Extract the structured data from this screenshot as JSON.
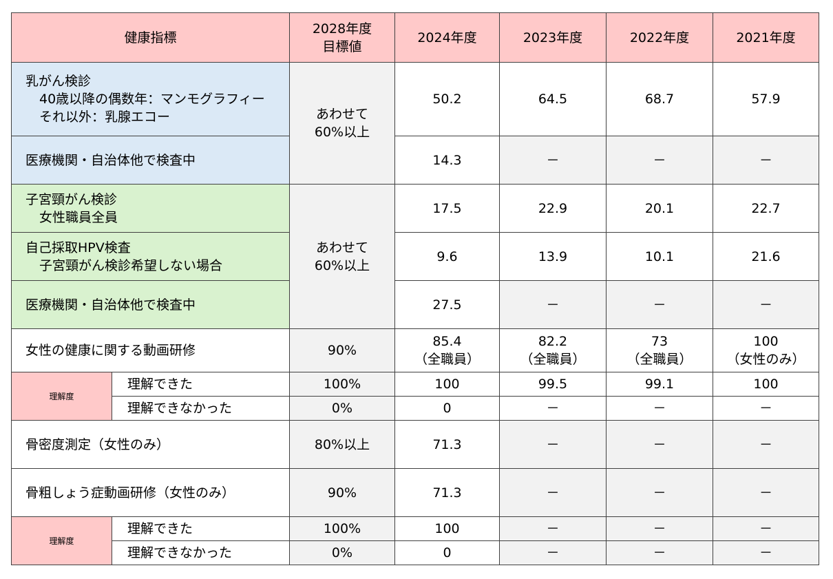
{
  "header": {
    "indicator": "健康指標",
    "target_line1": "2028年度",
    "target_line2": "目標値",
    "y2024": "2024年度",
    "y2023": "2023年度",
    "y2022": "2022年度",
    "y2021": "2021年度"
  },
  "breast": {
    "label_line1": "乳がん検診",
    "label_line2": "40歳以降の偶数年：マンモグラフィー",
    "label_line3": "それ以外：乳腺エコー",
    "target_line1": "あわせて",
    "target_line2": "60%以上",
    "values": [
      "50.2",
      "64.5",
      "68.7",
      "57.9"
    ],
    "external_label": "医療機関・自治体他で検査中",
    "external_values": [
      "14.3",
      "－",
      "－",
      "－"
    ]
  },
  "cervical": {
    "label_line1": "子宮頸がん検診",
    "label_line2": "女性職員全員",
    "target_line1": "あわせて",
    "target_line2": "60%以上",
    "values": [
      "17.5",
      "22.9",
      "20.1",
      "22.7"
    ],
    "hpv_line1": "自己採取HPV検査",
    "hpv_line2": "子宮頸がん検診希望しない場合",
    "hpv_values": [
      "9.6",
      "13.9",
      "10.1",
      "21.6"
    ],
    "external_label": "医療機関・自治体他で検査中",
    "external_values": [
      "27.5",
      "－",
      "－",
      "－"
    ]
  },
  "video": {
    "label": "女性の健康に関する動画研修",
    "target": "90%",
    "values": [
      {
        "v": "85.4",
        "note": "（全職員）"
      },
      {
        "v": "82.2",
        "note": "（全職員）"
      },
      {
        "v": "73",
        "note": "（全職員）"
      },
      {
        "v": "100",
        "note": "（女性のみ）"
      }
    ],
    "understanding_label": "理解度",
    "understood_label": "理解できた",
    "understood_target": "100%",
    "understood_values": [
      "100",
      "99.5",
      "99.1",
      "100"
    ],
    "not_understood_label": "理解できなかった",
    "not_understood_target": "0%",
    "not_understood_values": [
      "0",
      "－",
      "－",
      "－"
    ]
  },
  "bone_density": {
    "label": "骨密度測定（女性のみ）",
    "target": "80%以上",
    "values": [
      "71.3",
      "－",
      "－",
      "－"
    ]
  },
  "osteo_video": {
    "label": "骨粗しょう症動画研修（女性のみ）",
    "target": "90%",
    "values": [
      "71.3",
      "－",
      "－",
      "－"
    ],
    "understanding_label": "理解度",
    "understood_label": "理解できた",
    "understood_target": "100%",
    "understood_values": [
      "100",
      "－",
      "－",
      "－"
    ],
    "not_understood_label": "理解できなかった",
    "not_understood_target": "0%",
    "not_understood_values": [
      "0",
      "－",
      "－",
      "－"
    ]
  }
}
